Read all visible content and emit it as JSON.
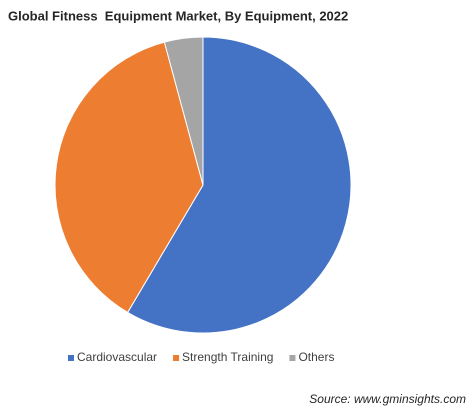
{
  "chart_data": {
    "type": "pie",
    "title": "Global Fitness  Equipment Market, By Equipment, 2022",
    "categories": [
      "Cardiovascular",
      "Strength Training",
      "Others"
    ],
    "values": [
      58.5,
      37.3,
      4.2
    ],
    "colors": [
      "#4472c4",
      "#ed7d31",
      "#a5a5a5"
    ],
    "legend": "bottom",
    "source": "Source: www.gminsights.com"
  }
}
